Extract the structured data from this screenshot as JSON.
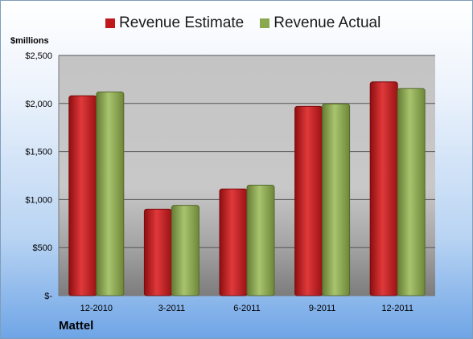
{
  "chart_data": {
    "type": "bar",
    "categories": [
      "12-2010",
      "3-2011",
      "6-2011",
      "9-2011",
      "12-2011"
    ],
    "series": [
      {
        "name": "Revenue Estimate",
        "values": [
          2080,
          900,
          1110,
          1970,
          2225
        ],
        "color": "#c0191c"
      },
      {
        "name": "Revenue Actual",
        "values": [
          2120,
          940,
          1150,
          1995,
          2155
        ],
        "color": "#8aa94f"
      }
    ],
    "ylabel": "$millions",
    "ylim": [
      0,
      2500
    ],
    "yticks": [
      0,
      500,
      1000,
      1500,
      2000,
      2500
    ],
    "ytick_labels": [
      "$-",
      "$500",
      "$1,000",
      "$1,500",
      "$2,000",
      "$2,500"
    ],
    "grid": true,
    "legend_position": "top-center"
  },
  "footer": {
    "company": "Mattel"
  }
}
